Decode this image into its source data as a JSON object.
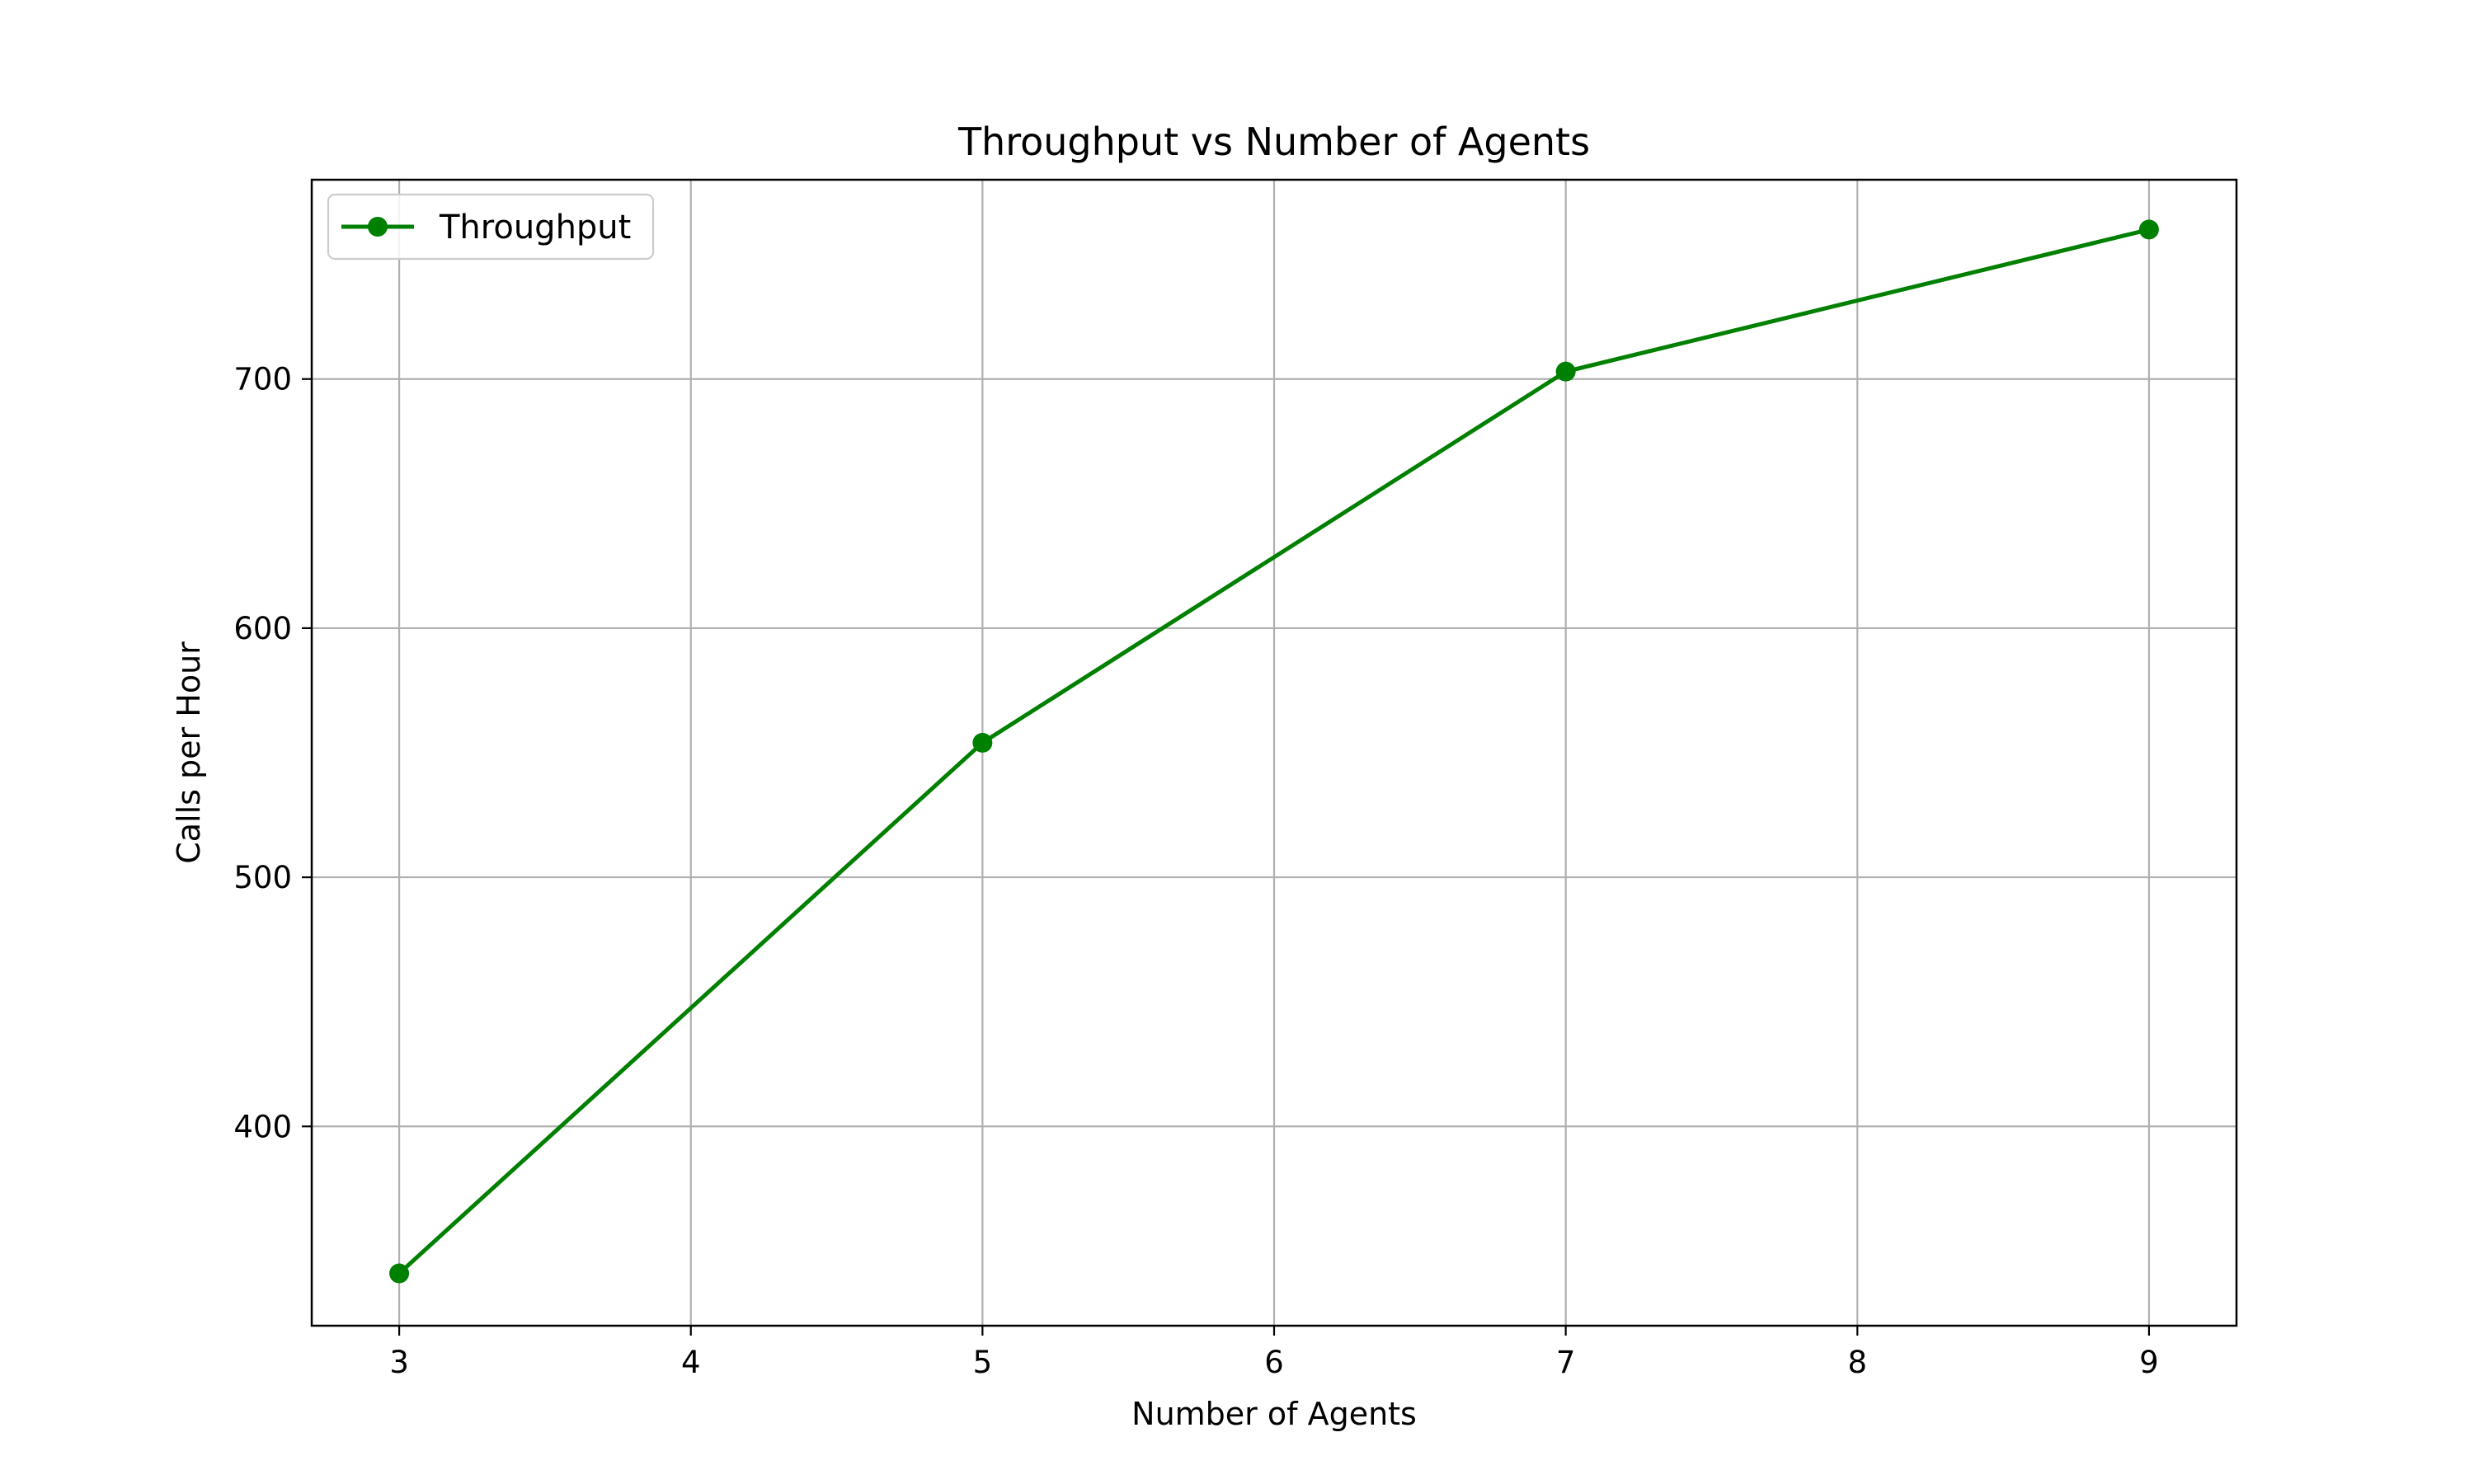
{
  "chart_data": {
    "type": "line",
    "title": "Throughput vs Number of Agents",
    "xlabel": "Number of Agents",
    "ylabel": "Calls per Hour",
    "xlim": [
      2.7,
      9.3
    ],
    "ylim": [
      320,
      780
    ],
    "xticks": [
      3,
      4,
      5,
      6,
      7,
      8,
      9
    ],
    "yticks": [
      400,
      500,
      600,
      700
    ],
    "grid": true,
    "legend_position": "top-left",
    "series": [
      {
        "name": "Throughput",
        "color": "#008000",
        "marker": "circle",
        "x": [
          3,
          5,
          7,
          9
        ],
        "y": [
          341,
          554,
          703,
          760
        ]
      }
    ]
  }
}
